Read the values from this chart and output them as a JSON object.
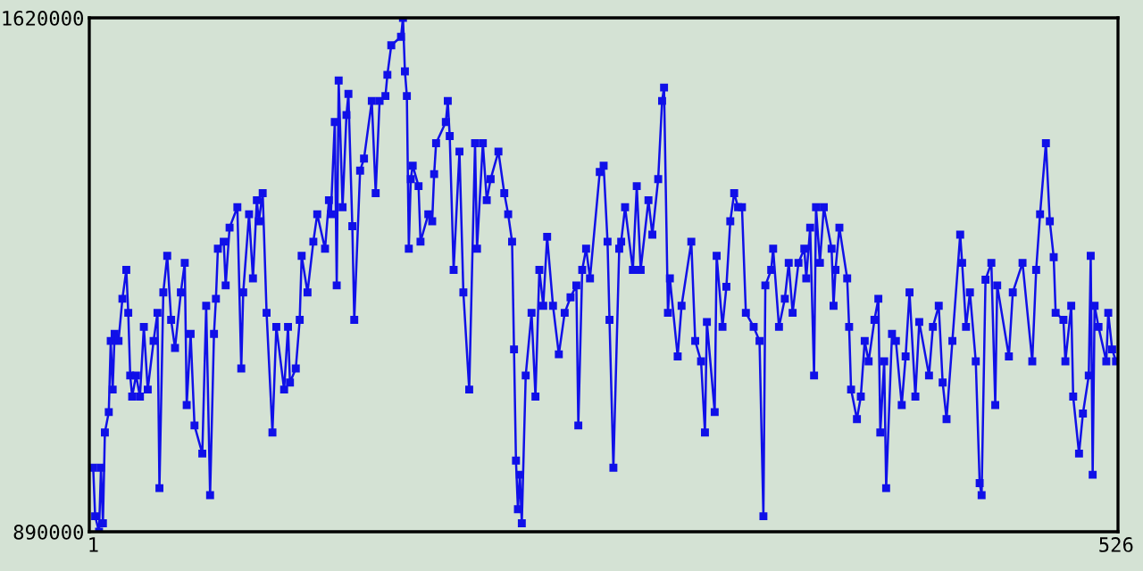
{
  "chart_data": {
    "type": "line",
    "marker": "square",
    "line_style": "solid",
    "grid": false,
    "xlim": [
      -1,
      527
    ],
    "xticks": [
      1,
      526
    ],
    "ylim": [
      890000,
      1620000
    ],
    "yticks": [
      890000,
      1620000
    ],
    "series": [
      {
        "color": "#1010e8",
        "x": [
          1,
          2,
          4,
          5,
          6,
          7,
          9,
          10,
          11,
          12,
          14,
          16,
          18,
          19,
          20,
          21,
          23,
          25,
          27,
          29,
          32,
          34,
          35,
          37,
          39,
          41,
          43,
          46,
          48,
          49,
          51,
          53,
          57,
          59,
          61,
          63,
          64,
          65,
          68,
          69,
          71,
          75,
          77,
          78,
          81,
          83,
          85,
          86,
          88,
          90,
          93,
          95,
          99,
          101,
          102,
          105,
          107,
          108,
          111,
          114,
          116,
          120,
          122,
          123,
          125,
          126,
          127,
          129,
          131,
          132,
          134,
          135,
          138,
          140,
          144,
          146,
          148,
          151,
          152,
          154,
          159,
          160,
          161,
          162,
          163,
          164,
          165,
          168,
          169,
          173,
          175,
          176,
          177,
          182,
          183,
          184,
          186,
          189,
          191,
          194,
          197,
          198,
          201,
          203,
          205,
          209,
          212,
          214,
          216,
          217,
          218,
          219,
          220,
          221,
          223,
          226,
          228,
          230,
          232,
          234,
          237,
          240,
          243,
          246,
          249,
          250,
          252,
          254,
          256,
          261,
          263,
          265,
          266,
          268,
          271,
          272,
          274,
          278,
          280,
          282,
          286,
          288,
          291,
          293,
          294,
          296,
          297,
          301,
          303,
          308,
          310,
          313,
          315,
          316,
          320,
          321,
          324,
          326,
          328,
          330,
          332,
          334,
          336,
          340,
          343,
          345,
          346,
          349,
          350,
          353,
          356,
          358,
          360,
          363,
          366,
          367,
          369,
          371,
          372,
          374,
          376,
          380,
          381,
          382,
          384,
          388,
          389,
          390,
          393,
          395,
          397,
          399,
          402,
          404,
          405,
          407,
          408,
          411,
          413,
          416,
          418,
          420,
          423,
          425,
          430,
          432,
          435,
          437,
          439,
          442,
          446,
          447,
          449,
          451,
          454,
          456,
          457,
          459,
          462,
          464,
          465,
          471,
          473,
          478,
          483,
          485,
          487,
          490,
          492,
          494,
          495,
          499,
          500,
          503,
          504,
          507,
          509,
          512,
          513,
          514,
          515,
          517,
          521,
          522,
          524,
          526
        ],
        "values": [
          981000,
          912000,
          890000,
          981000,
          902000,
          1031000,
          1060000,
          1161000,
          1092000,
          1171000,
          1161000,
          1221000,
          1262000,
          1201000,
          1112000,
          1082000,
          1112000,
          1082000,
          1181000,
          1092000,
          1161000,
          1201000,
          952000,
          1230000,
          1282000,
          1191000,
          1151000,
          1230000,
          1272000,
          1070000,
          1171000,
          1041000,
          1001000,
          1211000,
          942000,
          1171000,
          1221000,
          1292000,
          1302000,
          1240000,
          1322000,
          1351000,
          1122000,
          1230000,
          1341000,
          1250000,
          1361000,
          1331000,
          1371000,
          1201000,
          1031000,
          1181000,
          1092000,
          1181000,
          1102000,
          1122000,
          1191000,
          1282000,
          1230000,
          1302000,
          1341000,
          1292000,
          1361000,
          1341000,
          1472000,
          1240000,
          1531000,
          1351000,
          1482000,
          1512000,
          1324000,
          1191000,
          1403000,
          1420000,
          1502000,
          1371000,
          1502000,
          1509000,
          1539000,
          1581000,
          1593000,
          1620000,
          1544000,
          1509000,
          1292000,
          1391000,
          1410000,
          1381000,
          1302000,
          1341000,
          1331000,
          1398000,
          1442000,
          1472000,
          1502000,
          1452000,
          1262000,
          1430000,
          1230000,
          1092000,
          1442000,
          1292000,
          1442000,
          1361000,
          1391000,
          1430000,
          1371000,
          1341000,
          1302000,
          1149000,
          991000,
          922000,
          971000,
          902000,
          1112000,
          1201000,
          1082000,
          1262000,
          1211000,
          1309000,
          1211000,
          1142000,
          1201000,
          1223000,
          1240000,
          1041000,
          1262000,
          1292000,
          1250000,
          1401000,
          1410000,
          1302000,
          1191000,
          981000,
          1292000,
          1302000,
          1351000,
          1262000,
          1381000,
          1262000,
          1361000,
          1312000,
          1391000,
          1502000,
          1521000,
          1201000,
          1250000,
          1139000,
          1211000,
          1302000,
          1161000,
          1132000,
          1031000,
          1188000,
          1060000,
          1282000,
          1181000,
          1238000,
          1331000,
          1371000,
          1351000,
          1351000,
          1201000,
          1181000,
          1161000,
          912000,
          1240000,
          1262000,
          1292000,
          1181000,
          1221000,
          1272000,
          1201000,
          1272000,
          1292000,
          1250000,
          1322000,
          1112000,
          1351000,
          1272000,
          1351000,
          1292000,
          1211000,
          1262000,
          1322000,
          1250000,
          1181000,
          1092000,
          1050000,
          1082000,
          1161000,
          1132000,
          1191000,
          1221000,
          1031000,
          1132000,
          952000,
          1171000,
          1161000,
          1070000,
          1139000,
          1230000,
          1082000,
          1188000,
          1112000,
          1181000,
          1211000,
          1102000,
          1050000,
          1161000,
          1312000,
          1272000,
          1181000,
          1230000,
          1132000,
          959000,
          942000,
          1248000,
          1272000,
          1070000,
          1240000,
          1139000,
          1230000,
          1272000,
          1132000,
          1262000,
          1341000,
          1442000,
          1331000,
          1280000,
          1201000,
          1191000,
          1132000,
          1211000,
          1082000,
          1001000,
          1058000,
          1112000,
          1282000,
          971000,
          1211000,
          1181000,
          1132000,
          1201000,
          1149000,
          1132000
        ]
      }
    ]
  }
}
